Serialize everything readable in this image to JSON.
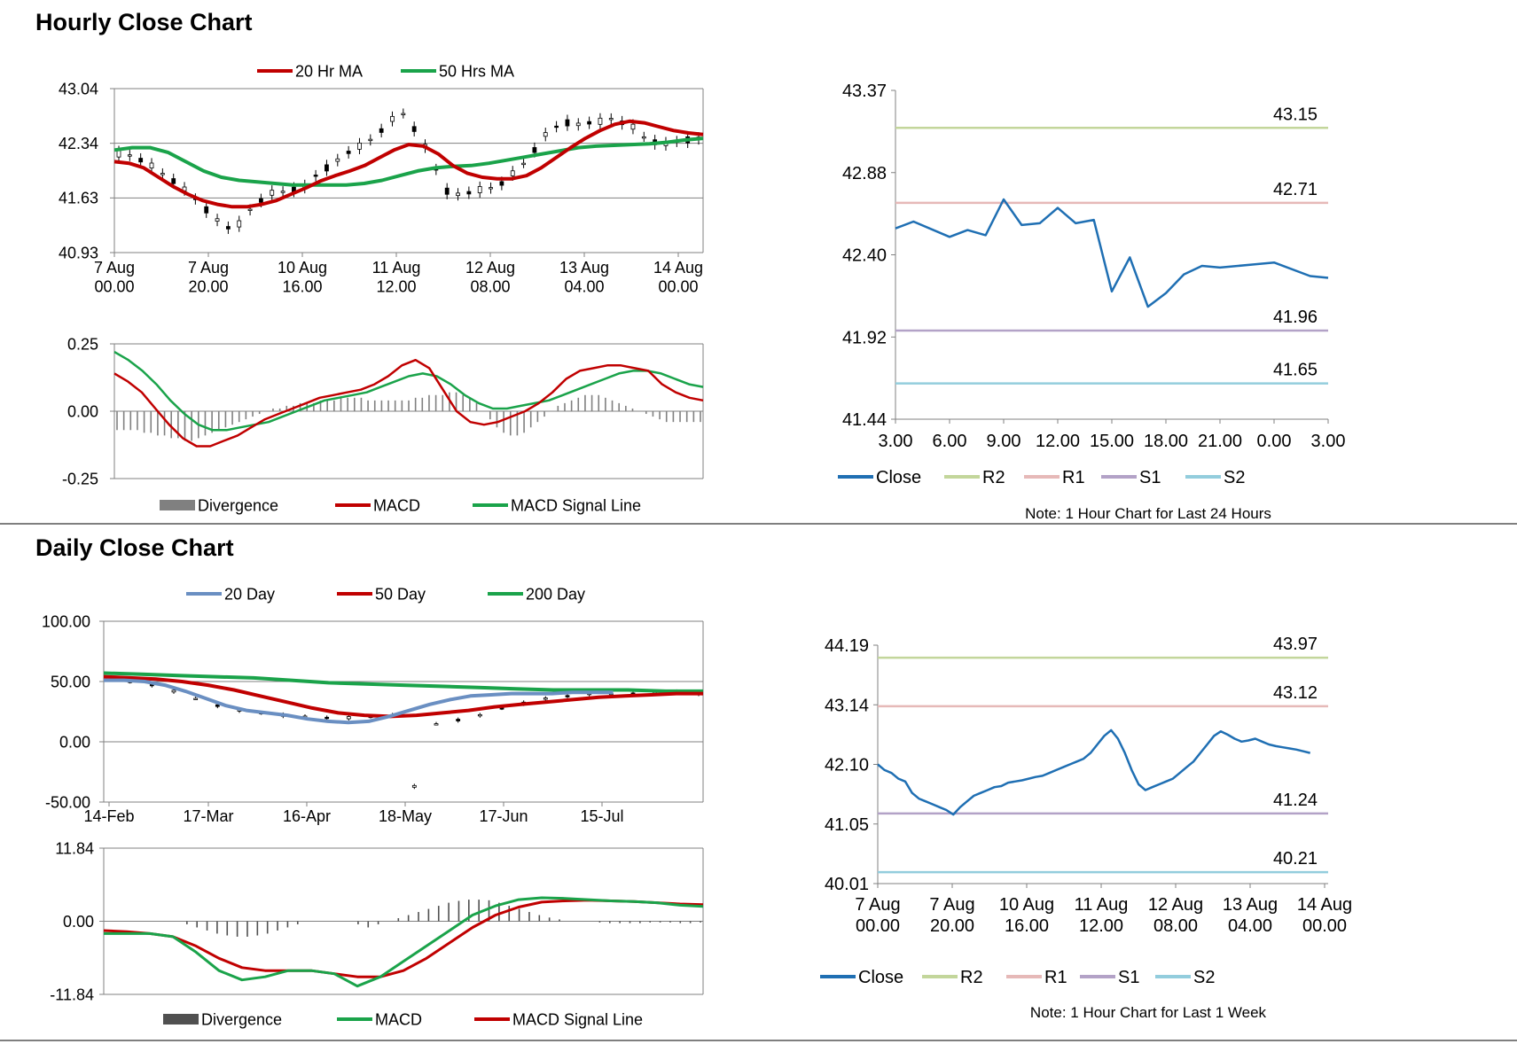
{
  "sections": {
    "hourly_title": "Hourly Close Chart",
    "daily_title": "Daily Close Chart"
  },
  "colors": {
    "red": "#c00000",
    "green": "#1aa34a",
    "blue": "#1f6fb3",
    "steel": "#6a8fc2",
    "r2": "#c3d69b",
    "r1": "#e6b9b8",
    "s1": "#b3a2c7",
    "s2": "#93cddd",
    "bar_gray": "#808080",
    "bar_dark": "#505050"
  },
  "chart_data": [
    {
      "id": "hourly_price",
      "type": "line",
      "legend": [
        "20 Hr MA",
        "50 Hrs MA"
      ],
      "y_ticks": [
        "43.04",
        "42.34",
        "41.63",
        "40.93"
      ],
      "ylim": [
        40.93,
        43.04
      ],
      "x_ticks": [
        [
          "7 Aug",
          "00.00"
        ],
        [
          "7 Aug",
          "20.00"
        ],
        [
          "10 Aug",
          "16.00"
        ],
        [
          "11 Aug",
          "12.00"
        ],
        [
          "12 Aug",
          "08.00"
        ],
        [
          "13 Aug",
          "04.00"
        ],
        [
          "14 Aug",
          "00.00"
        ]
      ],
      "price_series": [
        42.2,
        42.18,
        42.12,
        42.05,
        41.95,
        41.85,
        41.75,
        41.62,
        41.48,
        41.35,
        41.25,
        41.3,
        41.48,
        41.6,
        41.7,
        41.72,
        41.74,
        41.78,
        41.92,
        42.02,
        42.12,
        42.22,
        42.3,
        42.38,
        42.5,
        42.65,
        42.72,
        42.52,
        42.3,
        42.0,
        41.72,
        41.68,
        41.7,
        41.74,
        41.76,
        41.82,
        41.95,
        42.08,
        42.25,
        42.45,
        42.55,
        42.6,
        42.58,
        42.6,
        42.62,
        42.65,
        42.6,
        42.55,
        42.42,
        42.35,
        42.33,
        42.36,
        42.38,
        42.4
      ],
      "series": [
        {
          "name": "20 Hr MA",
          "values": [
            42.1,
            42.08,
            42.02,
            41.9,
            41.78,
            41.68,
            41.6,
            41.55,
            41.52,
            41.52,
            41.55,
            41.6,
            41.68,
            41.76,
            41.85,
            41.92,
            41.98,
            42.05,
            42.15,
            42.25,
            42.32,
            42.3,
            42.2,
            42.05,
            41.95,
            41.9,
            41.88,
            41.88,
            41.92,
            42.02,
            42.15,
            42.28,
            42.4,
            42.5,
            42.58,
            42.62,
            42.6,
            42.55,
            42.5,
            42.47,
            42.45
          ]
        },
        {
          "name": "50 Hrs MA",
          "values": [
            42.25,
            42.28,
            42.28,
            42.22,
            42.1,
            41.98,
            41.9,
            41.86,
            41.84,
            41.82,
            41.8,
            41.8,
            41.8,
            41.8,
            41.82,
            41.86,
            41.92,
            41.98,
            42.02,
            42.04,
            42.05,
            42.08,
            42.12,
            42.16,
            42.2,
            42.24,
            42.28,
            42.3,
            42.31,
            42.32,
            42.33,
            42.35,
            42.38,
            42.4
          ]
        }
      ]
    },
    {
      "id": "hourly_macd",
      "type": "line",
      "legend": [
        "Divergence",
        "MACD",
        "MACD Signal Line"
      ],
      "y_ticks": [
        "0.25",
        "0.00",
        "-0.25"
      ],
      "ylim": [
        -0.25,
        0.25
      ],
      "divergence": [
        -0.07,
        -0.07,
        -0.07,
        -0.07,
        -0.08,
        -0.08,
        -0.09,
        -0.09,
        -0.1,
        -0.1,
        -0.11,
        -0.11,
        -0.1,
        -0.09,
        -0.08,
        -0.07,
        -0.06,
        -0.05,
        -0.04,
        -0.03,
        -0.02,
        -0.01,
        0.0,
        0.01,
        0.01,
        0.02,
        0.02,
        0.03,
        0.03,
        0.03,
        0.04,
        0.04,
        0.04,
        0.05,
        0.05,
        0.05,
        0.05,
        0.04,
        0.04,
        0.04,
        0.04,
        0.04,
        0.04,
        0.04,
        0.05,
        0.05,
        0.06,
        0.06,
        0.06,
        0.07,
        0.07,
        0.06,
        0.05,
        0.03,
        0.0,
        -0.03,
        -0.06,
        -0.08,
        -0.09,
        -0.09,
        -0.08,
        -0.06,
        -0.04,
        -0.02,
        0.0,
        0.02,
        0.03,
        0.04,
        0.05,
        0.06,
        0.06,
        0.06,
        0.05,
        0.04,
        0.03,
        0.02,
        0.01,
        0.0,
        -0.01,
        -0.02,
        -0.03,
        -0.04,
        -0.04,
        -0.04,
        -0.04,
        -0.04,
        -0.04
      ],
      "series": [
        {
          "name": "MACD",
          "values": [
            0.14,
            0.11,
            0.07,
            0.01,
            -0.05,
            -0.1,
            -0.13,
            -0.13,
            -0.11,
            -0.09,
            -0.06,
            -0.03,
            -0.01,
            0.01,
            0.03,
            0.05,
            0.06,
            0.07,
            0.08,
            0.1,
            0.13,
            0.17,
            0.19,
            0.16,
            0.08,
            0.0,
            -0.04,
            -0.05,
            -0.04,
            -0.02,
            0.0,
            0.03,
            0.07,
            0.12,
            0.15,
            0.16,
            0.17,
            0.17,
            0.16,
            0.15,
            0.1,
            0.07,
            0.05,
            0.04
          ]
        },
        {
          "name": "MACD Signal Line",
          "values": [
            0.22,
            0.19,
            0.15,
            0.1,
            0.04,
            -0.01,
            -0.05,
            -0.07,
            -0.07,
            -0.06,
            -0.05,
            -0.04,
            -0.02,
            0.0,
            0.02,
            0.04,
            0.05,
            0.06,
            0.07,
            0.09,
            0.11,
            0.13,
            0.14,
            0.13,
            0.1,
            0.06,
            0.03,
            0.01,
            0.01,
            0.02,
            0.03,
            0.04,
            0.06,
            0.08,
            0.1,
            0.12,
            0.14,
            0.15,
            0.15,
            0.14,
            0.12,
            0.1,
            0.09
          ]
        }
      ]
    },
    {
      "id": "hourly_pivot",
      "type": "line",
      "note": "Note: 1 Hour Chart for Last 24 Hours",
      "legend": [
        "Close",
        "R2",
        "R1",
        "S1",
        "S2"
      ],
      "y_ticks": [
        "43.37",
        "42.88",
        "42.40",
        "41.92",
        "41.44"
      ],
      "ylim": [
        41.44,
        43.37
      ],
      "x_ticks": [
        "3.00",
        "6.00",
        "9.00",
        "12.00",
        "15.00",
        "18.00",
        "21.00",
        "0.00",
        "3.00"
      ],
      "levels": {
        "R2": 43.15,
        "R1": 42.71,
        "S1": 41.96,
        "S2": 41.65
      },
      "level_labels": {
        "R2": "43.15",
        "R1": "42.71",
        "S1": "41.96",
        "S2": "41.65"
      },
      "series": [
        {
          "name": "Close",
          "x": [
            0,
            1,
            3,
            4,
            5,
            6,
            7,
            8,
            9,
            10,
            11,
            12,
            13,
            14,
            15,
            16,
            17,
            18,
            19,
            20,
            21,
            23,
            24
          ],
          "values": [
            42.56,
            42.6,
            42.51,
            42.55,
            42.52,
            42.73,
            42.58,
            42.59,
            42.68,
            42.59,
            42.61,
            42.19,
            42.39,
            42.1,
            42.18,
            42.29,
            42.34,
            42.33,
            42.34,
            42.35,
            42.36,
            42.28,
            42.27
          ]
        }
      ]
    },
    {
      "id": "daily_price",
      "type": "line",
      "legend": [
        "20 Day",
        "50 Day",
        "200 Day"
      ],
      "y_ticks": [
        "100.00",
        "50.00",
        "0.00",
        "-50.00"
      ],
      "ylim": [
        -50,
        100
      ],
      "x_ticks": [
        "14-Feb",
        "17-Mar",
        "16-Apr",
        "18-May",
        "17-Jun",
        "15-Jul"
      ],
      "price_series": [
        52,
        50,
        47,
        42,
        36,
        30,
        26,
        24,
        22,
        21,
        20,
        20,
        21,
        22,
        -37,
        15,
        18,
        22,
        28,
        32,
        36,
        38,
        40,
        40,
        40,
        41,
        42,
        40
      ],
      "series": [
        {
          "name": "20 Day",
          "values": [
            51,
            51,
            50,
            47,
            42,
            36,
            30,
            26,
            24,
            22,
            19,
            17,
            16,
            17,
            21,
            26,
            31,
            35,
            38,
            39,
            40,
            40,
            40,
            41,
            41,
            41
          ]
        },
        {
          "name": "50 Day",
          "values": [
            54,
            53,
            52,
            50,
            47,
            43,
            38,
            33,
            28,
            24,
            22,
            21,
            22,
            24,
            26,
            29,
            31,
            33,
            35,
            37,
            38,
            39,
            40,
            40
          ]
        },
        {
          "name": "200 Day",
          "values": [
            57,
            56,
            55,
            54,
            53,
            51,
            49,
            48,
            47,
            46,
            45,
            44,
            43,
            43,
            43,
            42,
            42
          ]
        }
      ]
    },
    {
      "id": "daily_macd",
      "type": "line",
      "legend": [
        "Divergence",
        "MACD",
        "MACD Signal Line"
      ],
      "y_ticks": [
        "11.84",
        "0.00",
        "-11.84"
      ],
      "ylim": [
        -11.84,
        11.84
      ],
      "divergence": [
        0,
        0,
        0,
        0,
        0,
        0,
        0,
        0,
        -0.5,
        -1,
        -1.5,
        -2,
        -2.3,
        -2.5,
        -2.5,
        -2.3,
        -2,
        -1.5,
        -1,
        -0.5,
        0,
        0,
        0,
        0,
        0,
        -0.5,
        -1,
        -0.5,
        0,
        0.5,
        1,
        1.5,
        2,
        2.5,
        3,
        3.3,
        3.5,
        3.5,
        3.4,
        3,
        2.5,
        2,
        1.5,
        1,
        0.6,
        0.3,
        0,
        0,
        0,
        -0.2,
        -0.3,
        -0.3,
        -0.3,
        -0.3,
        -0.2,
        -0.2,
        -0.2,
        -0.3,
        -0.3,
        -0.2
      ],
      "series": [
        {
          "name": "MACD",
          "values": [
            -2,
            -2,
            -2,
            -2.5,
            -5,
            -8,
            -9.5,
            -9,
            -8,
            -8,
            -8.5,
            -10.5,
            -9,
            -6.5,
            -4,
            -1.5,
            1,
            2.5,
            3.5,
            3.8,
            3.7,
            3.5,
            3.3,
            3.2,
            3,
            2.6,
            2.4
          ]
        },
        {
          "name": "MACD Signal Line",
          "values": [
            -1.5,
            -1.7,
            -2,
            -2.5,
            -4,
            -6,
            -7.5,
            -8,
            -8,
            -8,
            -8.5,
            -9,
            -9,
            -8,
            -6,
            -3.5,
            -1,
            1,
            2.3,
            3.1,
            3.3,
            3.4,
            3.3,
            3.2,
            3,
            2.8,
            2.7
          ]
        }
      ]
    },
    {
      "id": "daily_pivot",
      "type": "line",
      "note": "Note: 1 Hour Chart for Last 1 Week",
      "legend": [
        "Close",
        "R2",
        "R1",
        "S1",
        "S2"
      ],
      "y_ticks": [
        "44.19",
        "43.14",
        "42.10",
        "41.05",
        "40.01"
      ],
      "ylim": [
        40.01,
        44.19
      ],
      "x_ticks": [
        [
          "7 Aug",
          "00.00"
        ],
        [
          "7 Aug",
          "20.00"
        ],
        [
          "10 Aug",
          "16.00"
        ],
        [
          "11 Aug",
          "12.00"
        ],
        [
          "12 Aug",
          "08.00"
        ],
        [
          "13 Aug",
          "04.00"
        ],
        [
          "14 Aug",
          "00.00"
        ]
      ],
      "levels": {
        "R2": 43.97,
        "R1": 43.12,
        "S1": 41.24,
        "S2": 40.21
      },
      "level_labels": {
        "R2": "43.97",
        "R1": "43.12",
        "S1": "41.24",
        "S2": "40.21"
      },
      "series": [
        {
          "name": "Close",
          "values": [
            42.1,
            42.0,
            41.95,
            41.85,
            41.8,
            41.6,
            41.5,
            41.45,
            41.4,
            41.35,
            41.3,
            41.22,
            41.35,
            41.45,
            41.55,
            41.6,
            41.65,
            41.7,
            41.72,
            41.78,
            41.8,
            41.82,
            41.85,
            41.88,
            41.9,
            41.95,
            42.0,
            42.05,
            42.1,
            42.15,
            42.2,
            42.3,
            42.45,
            42.6,
            42.7,
            42.55,
            42.3,
            42.0,
            41.75,
            41.65,
            41.7,
            41.75,
            41.8,
            41.85,
            41.95,
            42.05,
            42.15,
            42.3,
            42.45,
            42.6,
            42.68,
            42.62,
            42.55,
            42.5,
            42.52,
            42.55,
            42.5,
            42.45,
            42.42,
            42.4,
            42.38,
            42.36,
            42.33,
            42.3
          ]
        }
      ]
    }
  ]
}
